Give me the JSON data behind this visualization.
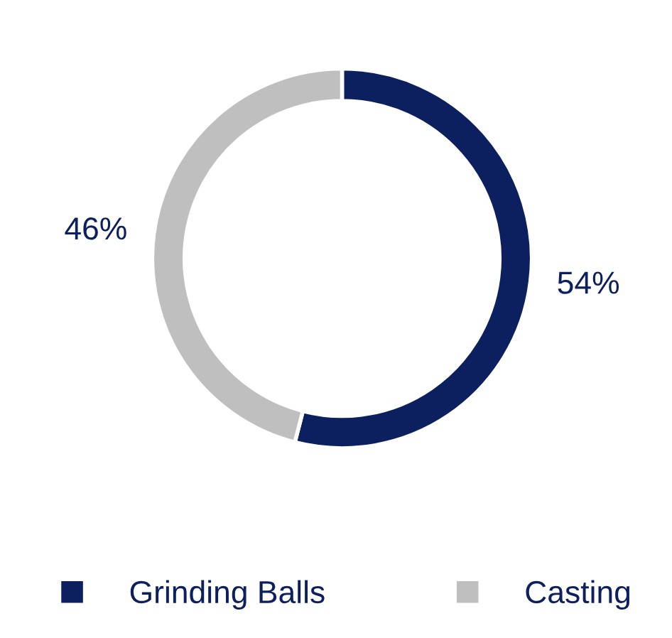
{
  "chart_data": {
    "type": "donut",
    "categories": [
      "Grinding Balls",
      "Casting"
    ],
    "values": [
      54,
      46
    ],
    "colors": [
      "#0c1f5e",
      "#bfbfbf"
    ],
    "value_labels": [
      "54%",
      "46%"
    ],
    "legend": "bottom"
  }
}
